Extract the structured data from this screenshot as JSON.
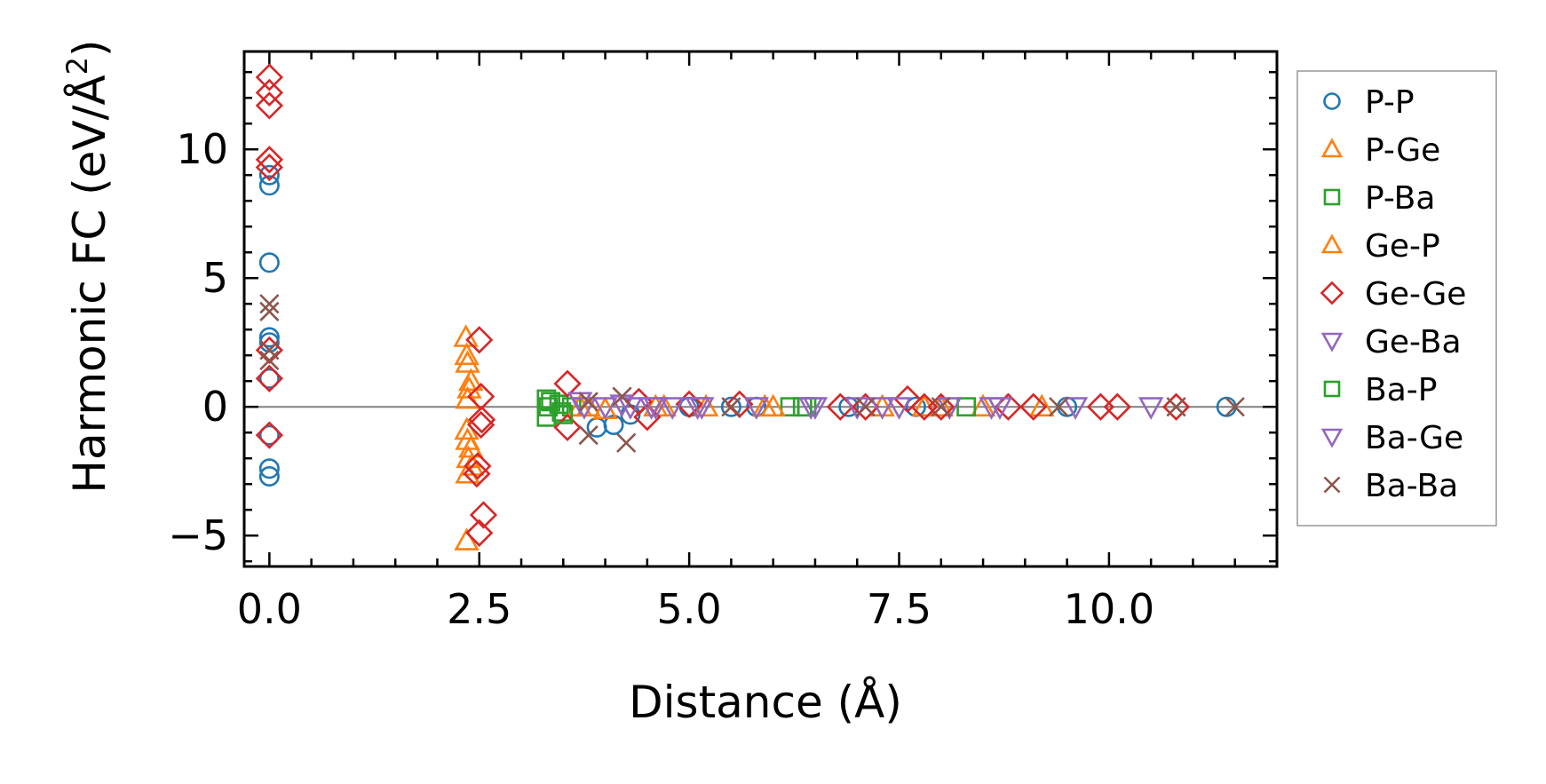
{
  "chart_data": {
    "type": "scatter",
    "title": "",
    "xlabel": "Distance (Å)",
    "ylabel_main": "Harmonic FC (eV/Å",
    "ylabel_sup": "2",
    "ylabel_close": ")",
    "xlim": [
      -0.3,
      12.0
    ],
    "ylim": [
      -6.2,
      13.8
    ],
    "xticks": [
      {
        "value": 0.0,
        "label": "0.0"
      },
      {
        "value": 2.5,
        "label": "2.5"
      },
      {
        "value": 5.0,
        "label": "5.0"
      },
      {
        "value": 7.5,
        "label": "7.5"
      },
      {
        "value": 10.0,
        "label": "10.0"
      }
    ],
    "yticks": [
      {
        "value": -5,
        "label": "−5"
      },
      {
        "value": 0,
        "label": "0"
      },
      {
        "value": 5,
        "label": "5"
      },
      {
        "value": 10,
        "label": "10"
      }
    ],
    "xminor_step": 0.5,
    "yminor_step": 1,
    "reference_line_y": 0,
    "legend_position": "outside-right",
    "series": [
      {
        "name": "P-P",
        "marker": "circle",
        "color": "#1f77b4",
        "points": [
          [
            0,
            8.6
          ],
          [
            0,
            9.0
          ],
          [
            0,
            5.6
          ],
          [
            0,
            2.7
          ],
          [
            0,
            2.5
          ],
          [
            0,
            1.1
          ],
          [
            0,
            -1.1
          ],
          [
            0,
            -2.4
          ],
          [
            0,
            -2.7
          ],
          [
            3.9,
            -0.8
          ],
          [
            4.1,
            -0.7
          ],
          [
            4.3,
            -0.3
          ],
          [
            5.0,
            0.0
          ],
          [
            5.5,
            0.0
          ],
          [
            5.8,
            0.0
          ],
          [
            6.9,
            0.0
          ],
          [
            7.7,
            0.0
          ],
          [
            9.5,
            0.0
          ],
          [
            11.4,
            0.0
          ]
        ]
      },
      {
        "name": "P-Ge",
        "marker": "triangle-up",
        "color": "#ff7f0e",
        "points": [
          [
            2.34,
            2.7
          ],
          [
            2.35,
            2.0
          ],
          [
            2.36,
            1.7
          ],
          [
            2.38,
            0.7
          ],
          [
            2.36,
            0.3
          ],
          [
            2.35,
            -0.9
          ],
          [
            2.36,
            -1.3
          ],
          [
            2.37,
            -2.0
          ],
          [
            2.36,
            -2.6
          ],
          [
            2.35,
            -5.2
          ],
          [
            3.8,
            0.0
          ],
          [
            4.0,
            -0.1
          ],
          [
            4.6,
            0.0
          ],
          [
            5.2,
            0.0
          ],
          [
            5.9,
            0.0
          ],
          [
            7.3,
            0.0
          ],
          [
            8.5,
            0.0
          ]
        ]
      },
      {
        "name": "P-Ba",
        "marker": "square",
        "color": "#2ca02c",
        "points": [
          [
            3.3,
            0.3
          ],
          [
            3.32,
            0.0
          ],
          [
            3.3,
            -0.4
          ],
          [
            3.45,
            0.1
          ],
          [
            3.48,
            -0.2
          ],
          [
            3.6,
            0.0
          ],
          [
            6.2,
            0.0
          ],
          [
            6.4,
            0.0
          ],
          [
            8.3,
            0.0
          ]
        ]
      },
      {
        "name": "Ge-P",
        "marker": "triangle-up",
        "color": "#ff7f0e",
        "points": [
          [
            2.4,
            1.0
          ],
          [
            2.4,
            -1.6
          ],
          [
            2.41,
            -2.3
          ],
          [
            3.7,
            0.0
          ],
          [
            4.7,
            0.0
          ],
          [
            6.0,
            0.0
          ],
          [
            7.8,
            0.0
          ],
          [
            8.0,
            0.0
          ],
          [
            9.2,
            0.0
          ]
        ]
      },
      {
        "name": "Ge-Ge",
        "marker": "diamond",
        "color": "#d62728",
        "points": [
          [
            0,
            12.8
          ],
          [
            0,
            12.2
          ],
          [
            0,
            11.7
          ],
          [
            0,
            9.6
          ],
          [
            0,
            9.3
          ],
          [
            0,
            2.2
          ],
          [
            0,
            1.1
          ],
          [
            0,
            -1.1
          ],
          [
            2.5,
            2.6
          ],
          [
            2.52,
            0.4
          ],
          [
            2.53,
            -0.5
          ],
          [
            2.52,
            -0.7
          ],
          [
            2.48,
            -2.3
          ],
          [
            2.47,
            -2.6
          ],
          [
            2.55,
            -4.2
          ],
          [
            2.5,
            -4.9
          ],
          [
            3.55,
            0.9
          ],
          [
            3.55,
            -0.8
          ],
          [
            4.4,
            0.2
          ],
          [
            4.5,
            -0.4
          ],
          [
            5.0,
            0.1
          ],
          [
            5.6,
            0.1
          ],
          [
            6.8,
            0.0
          ],
          [
            7.1,
            0.0
          ],
          [
            7.6,
            0.3
          ],
          [
            7.8,
            0.0
          ],
          [
            8.0,
            0.0
          ],
          [
            8.8,
            0.0
          ],
          [
            9.1,
            0.0
          ],
          [
            9.9,
            0.0
          ],
          [
            10.1,
            0.0
          ],
          [
            10.8,
            0.0
          ]
        ]
      },
      {
        "name": "Ge-Ba",
        "marker": "triangle-down",
        "color": "#9467bd",
        "points": [
          [
            3.7,
            0.2
          ],
          [
            4.0,
            0.0
          ],
          [
            4.2,
            0.1
          ],
          [
            4.55,
            0.0
          ],
          [
            4.8,
            0.0
          ],
          [
            5.15,
            0.0
          ],
          [
            5.8,
            0.0
          ],
          [
            6.5,
            0.0
          ],
          [
            7.0,
            0.0
          ],
          [
            7.5,
            0.0
          ],
          [
            8.1,
            0.0
          ],
          [
            8.6,
            0.0
          ],
          [
            9.6,
            0.0
          ],
          [
            10.5,
            0.0
          ]
        ]
      },
      {
        "name": "Ba-P",
        "marker": "square",
        "color": "#2ca02c",
        "points": [
          [
            3.35,
            0.2
          ],
          [
            3.5,
            -0.3
          ],
          [
            6.35,
            0.0
          ]
        ]
      },
      {
        "name": "Ba-Ge",
        "marker": "triangle-down",
        "color": "#9467bd",
        "points": [
          [
            3.75,
            0.0
          ],
          [
            4.3,
            0.0
          ],
          [
            4.6,
            0.0
          ],
          [
            5.1,
            0.0
          ],
          [
            6.45,
            0.0
          ],
          [
            7.3,
            0.0
          ],
          [
            8.7,
            0.0
          ]
        ]
      },
      {
        "name": "Ba-Ba",
        "marker": "cross",
        "color": "#8c564b",
        "points": [
          [
            0,
            4.0
          ],
          [
            0,
            3.7
          ],
          [
            0,
            2.2
          ],
          [
            0,
            1.8
          ],
          [
            3.8,
            -1.1
          ],
          [
            3.8,
            0.2
          ],
          [
            4.2,
            0.4
          ],
          [
            4.25,
            -1.4
          ],
          [
            5.5,
            0.0
          ],
          [
            7.1,
            0.0
          ],
          [
            8.0,
            0.0
          ],
          [
            9.4,
            0.0
          ],
          [
            10.8,
            0.0
          ],
          [
            11.5,
            0.0
          ]
        ]
      }
    ]
  }
}
